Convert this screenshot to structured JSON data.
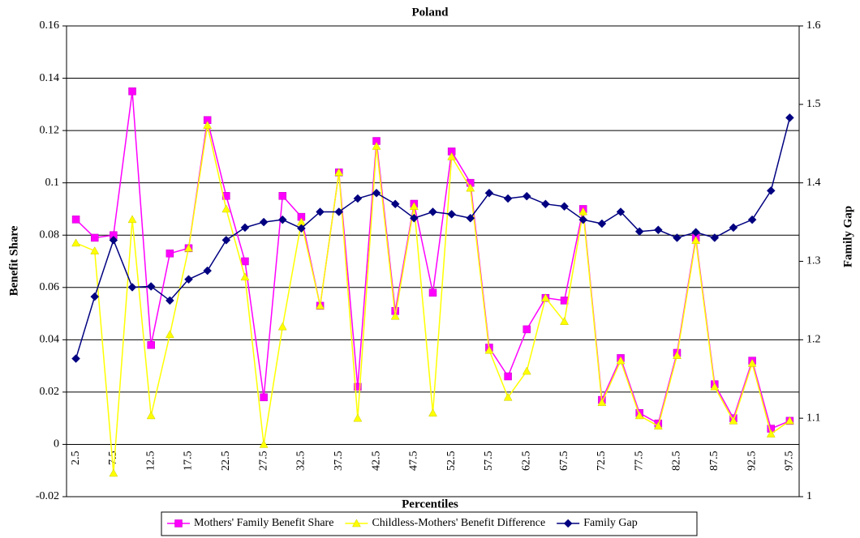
{
  "chart_data": {
    "type": "line",
    "title": "Poland",
    "x_label": "Percentiles",
    "y_label": "Benefit Share",
    "y2_label": "Family Gap",
    "categories": [
      2.5,
      null,
      7.5,
      null,
      12.5,
      null,
      17.5,
      null,
      22.5,
      null,
      27.5,
      null,
      32.5,
      null,
      37.5,
      null,
      42.5,
      null,
      47.5,
      null,
      52.5,
      null,
      57.5,
      null,
      62.5,
      null,
      67.5,
      null,
      72.5,
      null,
      77.5,
      null,
      82.5,
      null,
      87.5,
      null,
      92.5,
      null,
      97.5
    ],
    "series": [
      {
        "name": "Mothers' Family Benefit Share",
        "color": "#ff00ff",
        "marker": "square",
        "values": [
          0.086,
          0.079,
          0.08,
          0.135,
          0.038,
          0.073,
          0.075,
          0.124,
          0.095,
          0.07,
          0.018,
          0.095,
          0.087,
          0.053,
          0.104,
          0.022,
          0.116,
          0.051,
          0.092,
          0.058,
          0.112,
          0.1,
          0.037,
          0.026,
          0.044,
          0.056,
          0.055,
          0.09,
          0.017,
          0.033,
          0.012,
          0.008,
          0.035,
          0.079,
          0.023,
          0.01,
          0.032,
          0.006,
          0.009
        ]
      },
      {
        "name": "Childless-Mothers' Benefit Difference",
        "color": "#ffff00",
        "marker": "triangle",
        "values": [
          0.077,
          0.074,
          -0.011,
          0.086,
          0.011,
          0.042,
          0.075,
          0.122,
          0.09,
          0.064,
          0.0,
          0.045,
          0.085,
          0.053,
          0.104,
          0.01,
          0.114,
          0.049,
          0.091,
          0.012,
          0.11,
          0.098,
          0.036,
          0.018,
          0.028,
          0.056,
          0.047,
          0.089,
          0.016,
          0.032,
          0.011,
          0.007,
          0.034,
          0.078,
          0.022,
          0.009,
          0.031,
          0.004,
          0.009
        ]
      },
      {
        "name": "Family Gap",
        "color": "#000080",
        "marker": "diamond",
        "axis": "y2",
        "values": [
          1.176,
          1.255,
          1.327,
          1.267,
          1.268,
          1.25,
          1.277,
          1.288,
          1.327,
          1.343,
          1.35,
          1.353,
          1.342,
          1.363,
          1.363,
          1.38,
          1.387,
          1.373,
          1.355,
          1.363,
          1.36,
          1.355,
          1.387,
          1.38,
          1.383,
          1.373,
          1.37,
          1.353,
          1.348,
          1.363,
          1.338,
          1.34,
          1.33,
          1.337,
          1.33,
          1.343,
          1.353,
          1.39,
          1.483
        ]
      }
    ],
    "ylim": [
      -0.02,
      0.16
    ],
    "yticks": [
      -0.02,
      0,
      0.02,
      0.04,
      0.06,
      0.08,
      0.1,
      0.12,
      0.14,
      0.16
    ],
    "y2lim": [
      1,
      1.6
    ],
    "y2ticks": [
      1,
      1.1,
      1.2,
      1.3,
      1.4,
      1.5,
      1.6
    ],
    "grid": true,
    "legend": "bottom"
  }
}
